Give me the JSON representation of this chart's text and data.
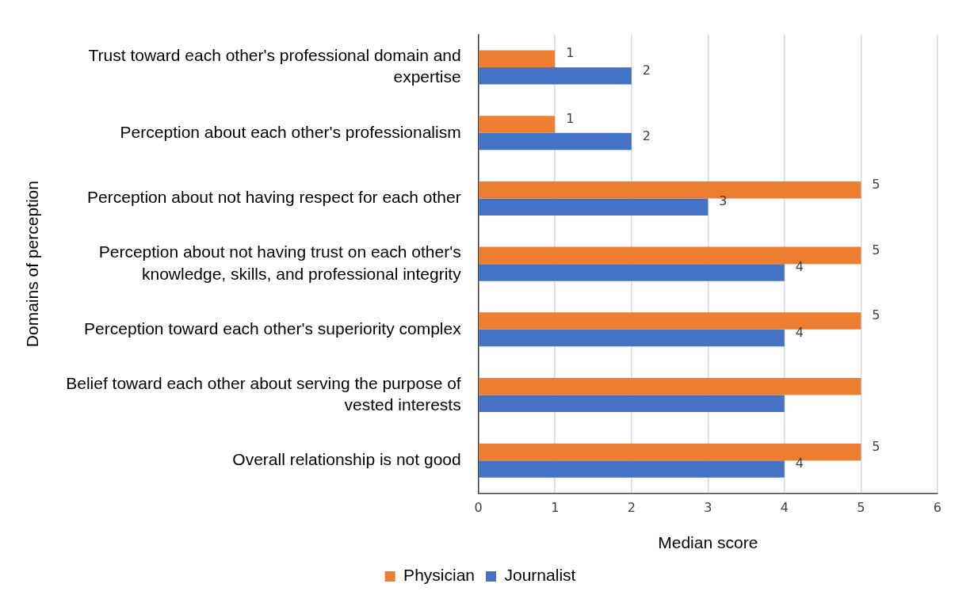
{
  "chart_data": {
    "type": "bar",
    "orientation": "horizontal",
    "xlabel": "Median score",
    "ylabel": "Domains of perception",
    "categories": [
      "Trust toward each other's professional domain and expertise",
      "Perception about each other's professionalism",
      "Perception about not having respect for each other",
      "Perception about not having trust on each other's knowledge, skills, and professional integrity",
      "Perception toward each other's superiority complex",
      "Belief toward each other about serving the purpose of vested interests",
      "Overall relationship is not good"
    ],
    "series": [
      {
        "name": "Physician",
        "color": "#ed7d31",
        "values": [
          1,
          1,
          5,
          5,
          5,
          5,
          5
        ],
        "value_labels": [
          "1",
          "1",
          "5",
          "5",
          "5",
          null,
          "5"
        ]
      },
      {
        "name": "Journalist",
        "color": "#4472c4",
        "values": [
          2,
          2,
          3,
          4,
          4,
          4,
          4
        ],
        "value_labels": [
          "2",
          "2",
          "3",
          "4",
          "4",
          null,
          "4"
        ]
      }
    ],
    "xlim": [
      0,
      6
    ],
    "xticks": [
      0,
      1,
      2,
      3,
      4,
      5,
      6
    ],
    "grid": "x",
    "legend": "bottom"
  }
}
